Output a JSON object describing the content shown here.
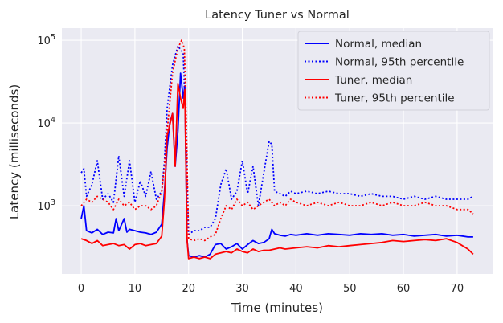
{
  "chart_data": {
    "type": "line",
    "title": "Latency Tuner vs Normal",
    "xlabel": "Time (minutes)",
    "ylabel": "Latency (milliseconds)",
    "y_scale": "log",
    "xlim": [
      -3.6,
      76.6
    ],
    "ylim": [
      150,
      140000
    ],
    "x_ticks": [
      0,
      10,
      20,
      30,
      40,
      50,
      60,
      70
    ],
    "x_tick_labels": [
      "0",
      "10",
      "20",
      "30",
      "40",
      "50",
      "60",
      "70"
    ],
    "y_ticks": [
      1000,
      10000,
      100000
    ],
    "y_tick_labels": [
      {
        "base": "10",
        "exp": "3"
      },
      {
        "base": "10",
        "exp": "4"
      },
      {
        "base": "10",
        "exp": "5"
      }
    ],
    "grid": true,
    "legend_position": "upper-right",
    "background": "#eaeaf2",
    "series": [
      {
        "name": "Normal, median",
        "color": "#0000ff",
        "style": "solid",
        "points": [
          [
            0,
            700
          ],
          [
            0.5,
            1000
          ],
          [
            1,
            500
          ],
          [
            2,
            470
          ],
          [
            3,
            520
          ],
          [
            4,
            450
          ],
          [
            5,
            480
          ],
          [
            6,
            470
          ],
          [
            6.5,
            700
          ],
          [
            7,
            500
          ],
          [
            8,
            700
          ],
          [
            8.5,
            480
          ],
          [
            9,
            520
          ],
          [
            10,
            500
          ],
          [
            11,
            480
          ],
          [
            12,
            470
          ],
          [
            13,
            450
          ],
          [
            14,
            480
          ],
          [
            15,
            600
          ],
          [
            15.5,
            1500
          ],
          [
            16,
            5000
          ],
          [
            16.5,
            10000
          ],
          [
            17,
            13000
          ],
          [
            17.5,
            3000
          ],
          [
            18,
            8000
          ],
          [
            18.5,
            40000
          ],
          [
            19,
            20000
          ],
          [
            19.3,
            28000
          ],
          [
            19.7,
            400
          ],
          [
            20,
            250
          ],
          [
            21,
            240
          ],
          [
            22,
            250
          ],
          [
            23,
            240
          ],
          [
            24,
            260
          ],
          [
            25,
            340
          ],
          [
            26,
            350
          ],
          [
            27,
            300
          ],
          [
            28,
            320
          ],
          [
            29,
            350
          ],
          [
            30,
            300
          ],
          [
            31,
            340
          ],
          [
            32,
            380
          ],
          [
            33,
            350
          ],
          [
            34,
            360
          ],
          [
            35,
            400
          ],
          [
            35.5,
            520
          ],
          [
            36,
            460
          ],
          [
            37,
            440
          ],
          [
            38,
            430
          ],
          [
            39,
            450
          ],
          [
            40,
            440
          ],
          [
            42,
            460
          ],
          [
            44,
            440
          ],
          [
            46,
            460
          ],
          [
            48,
            450
          ],
          [
            50,
            440
          ],
          [
            52,
            460
          ],
          [
            54,
            450
          ],
          [
            56,
            460
          ],
          [
            58,
            440
          ],
          [
            60,
            450
          ],
          [
            62,
            430
          ],
          [
            64,
            440
          ],
          [
            66,
            450
          ],
          [
            68,
            430
          ],
          [
            70,
            440
          ],
          [
            72,
            420
          ],
          [
            73,
            420
          ]
        ]
      },
      {
        "name": "Normal, 95th percentile",
        "color": "#0000ff",
        "style": "dotted",
        "points": [
          [
            0,
            2500
          ],
          [
            0.5,
            2800
          ],
          [
            1,
            1300
          ],
          [
            2,
            1800
          ],
          [
            3,
            3500
          ],
          [
            4,
            1200
          ],
          [
            5,
            1400
          ],
          [
            6,
            1100
          ],
          [
            7,
            4000
          ],
          [
            8,
            1300
          ],
          [
            9,
            3500
          ],
          [
            10,
            1100
          ],
          [
            11,
            2000
          ],
          [
            12,
            1300
          ],
          [
            13,
            2600
          ],
          [
            14,
            1200
          ],
          [
            15,
            1500
          ],
          [
            15.5,
            3500
          ],
          [
            16,
            15000
          ],
          [
            17,
            50000
          ],
          [
            18,
            85000
          ],
          [
            19,
            70000
          ],
          [
            19.5,
            8000
          ],
          [
            20,
            450
          ],
          [
            21,
            500
          ],
          [
            22,
            500
          ],
          [
            23,
            550
          ],
          [
            24,
            550
          ],
          [
            25,
            700
          ],
          [
            26,
            1800
          ],
          [
            27,
            2800
          ],
          [
            28,
            1200
          ],
          [
            29,
            1500
          ],
          [
            30,
            3500
          ],
          [
            31,
            1400
          ],
          [
            32,
            3000
          ],
          [
            33,
            1000
          ],
          [
            34,
            2500
          ],
          [
            35,
            6000
          ],
          [
            35.5,
            5500
          ],
          [
            36,
            1500
          ],
          [
            37,
            1400
          ],
          [
            38,
            1300
          ],
          [
            39,
            1500
          ],
          [
            40,
            1400
          ],
          [
            42,
            1500
          ],
          [
            44,
            1400
          ],
          [
            46,
            1500
          ],
          [
            48,
            1400
          ],
          [
            50,
            1400
          ],
          [
            52,
            1300
          ],
          [
            54,
            1400
          ],
          [
            56,
            1300
          ],
          [
            58,
            1300
          ],
          [
            60,
            1200
          ],
          [
            62,
            1300
          ],
          [
            64,
            1200
          ],
          [
            66,
            1300
          ],
          [
            68,
            1200
          ],
          [
            70,
            1200
          ],
          [
            72,
            1200
          ],
          [
            73,
            1300
          ]
        ]
      },
      {
        "name": "Tuner, median",
        "color": "#ff0000",
        "style": "solid",
        "points": [
          [
            0,
            400
          ],
          [
            1,
            380
          ],
          [
            2,
            350
          ],
          [
            3,
            380
          ],
          [
            4,
            330
          ],
          [
            5,
            340
          ],
          [
            6,
            350
          ],
          [
            7,
            330
          ],
          [
            8,
            340
          ],
          [
            9,
            300
          ],
          [
            10,
            340
          ],
          [
            11,
            350
          ],
          [
            12,
            330
          ],
          [
            13,
            340
          ],
          [
            14,
            350
          ],
          [
            15,
            430
          ],
          [
            15.5,
            1200
          ],
          [
            16,
            7000
          ],
          [
            17,
            13000
          ],
          [
            17.5,
            3000
          ],
          [
            18,
            30000
          ],
          [
            18.5,
            20000
          ],
          [
            19,
            15000
          ],
          [
            19.3,
            25000
          ],
          [
            19.7,
            400
          ],
          [
            20,
            230
          ],
          [
            21,
            240
          ],
          [
            22,
            230
          ],
          [
            23,
            240
          ],
          [
            24,
            230
          ],
          [
            25,
            260
          ],
          [
            26,
            270
          ],
          [
            27,
            280
          ],
          [
            28,
            270
          ],
          [
            29,
            300
          ],
          [
            30,
            280
          ],
          [
            31,
            270
          ],
          [
            32,
            300
          ],
          [
            33,
            280
          ],
          [
            34,
            290
          ],
          [
            35,
            290
          ],
          [
            36,
            300
          ],
          [
            37,
            310
          ],
          [
            38,
            300
          ],
          [
            40,
            310
          ],
          [
            42,
            320
          ],
          [
            44,
            310
          ],
          [
            46,
            330
          ],
          [
            48,
            320
          ],
          [
            50,
            330
          ],
          [
            52,
            340
          ],
          [
            54,
            350
          ],
          [
            56,
            360
          ],
          [
            58,
            380
          ],
          [
            60,
            370
          ],
          [
            62,
            380
          ],
          [
            64,
            390
          ],
          [
            66,
            380
          ],
          [
            68,
            400
          ],
          [
            70,
            360
          ],
          [
            72,
            300
          ],
          [
            73,
            260
          ]
        ]
      },
      {
        "name": "Tuner, 95th percentile",
        "color": "#ff0000",
        "style": "dotted",
        "points": [
          [
            0,
            1000
          ],
          [
            1,
            1200
          ],
          [
            2,
            1100
          ],
          [
            3,
            1300
          ],
          [
            4,
            1200
          ],
          [
            5,
            1100
          ],
          [
            6,
            900
          ],
          [
            7,
            1200
          ],
          [
            8,
            1000
          ],
          [
            9,
            1100
          ],
          [
            10,
            900
          ],
          [
            11,
            1000
          ],
          [
            12,
            1000
          ],
          [
            13,
            900
          ],
          [
            14,
            1000
          ],
          [
            15,
            1500
          ],
          [
            15.5,
            3000
          ],
          [
            16,
            8000
          ],
          [
            17,
            40000
          ],
          [
            18,
            80000
          ],
          [
            18.7,
            100000
          ],
          [
            19.2,
            80000
          ],
          [
            19.6,
            8000
          ],
          [
            20,
            400
          ],
          [
            21,
            380
          ],
          [
            22,
            400
          ],
          [
            23,
            380
          ],
          [
            24,
            420
          ],
          [
            25,
            450
          ],
          [
            26,
            700
          ],
          [
            27,
            1000
          ],
          [
            28,
            900
          ],
          [
            29,
            1200
          ],
          [
            30,
            1000
          ],
          [
            31,
            1100
          ],
          [
            32,
            900
          ],
          [
            33,
            1000
          ],
          [
            34,
            1100
          ],
          [
            35,
            1200
          ],
          [
            36,
            1000
          ],
          [
            37,
            1100
          ],
          [
            38,
            1000
          ],
          [
            39,
            1200
          ],
          [
            40,
            1100
          ],
          [
            42,
            1000
          ],
          [
            44,
            1100
          ],
          [
            46,
            1000
          ],
          [
            48,
            1100
          ],
          [
            50,
            1000
          ],
          [
            52,
            1000
          ],
          [
            54,
            1100
          ],
          [
            56,
            1000
          ],
          [
            58,
            1100
          ],
          [
            60,
            1000
          ],
          [
            62,
            1000
          ],
          [
            64,
            1100
          ],
          [
            66,
            1000
          ],
          [
            68,
            1000
          ],
          [
            70,
            900
          ],
          [
            72,
            900
          ],
          [
            73,
            800
          ]
        ]
      }
    ]
  }
}
